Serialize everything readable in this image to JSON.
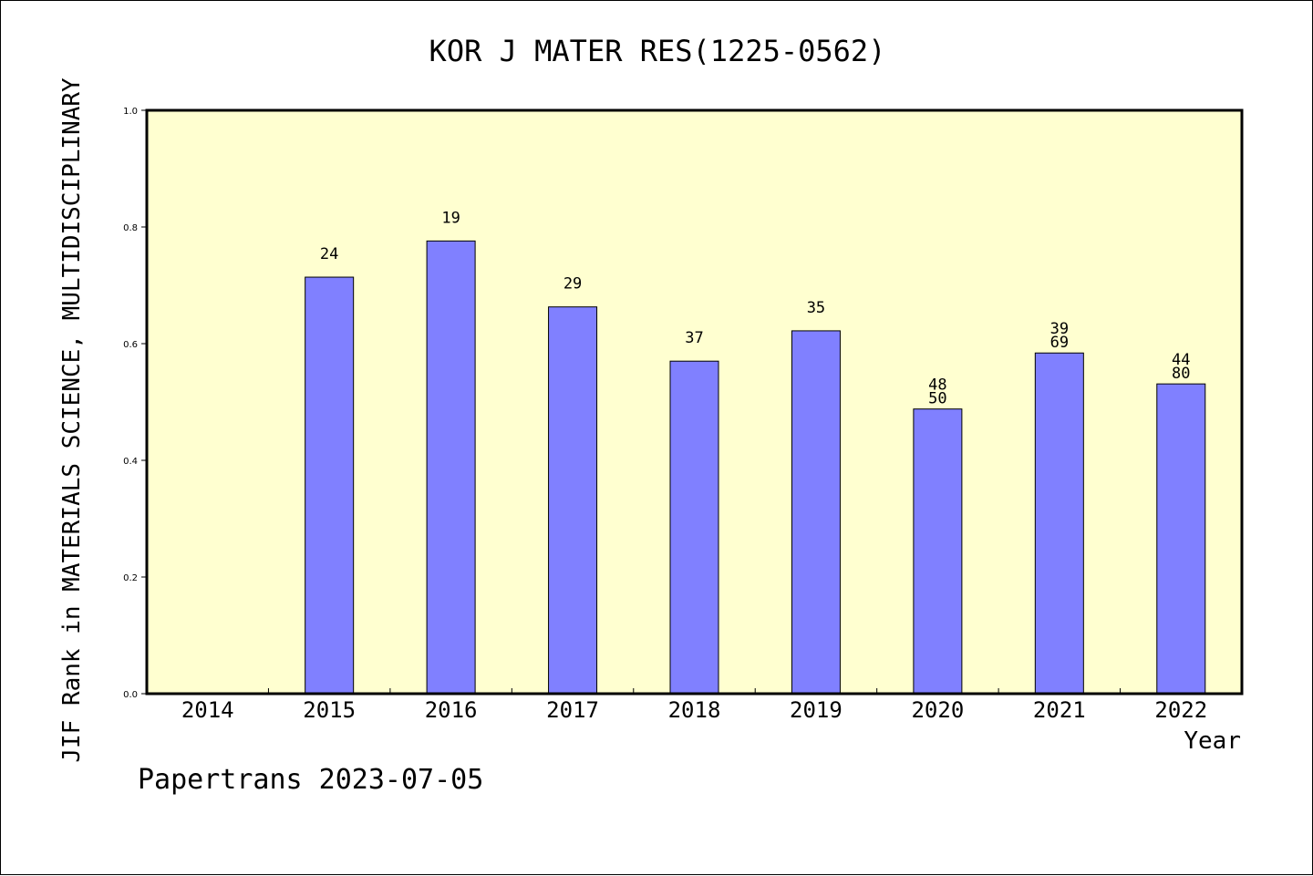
{
  "chart_data": {
    "type": "bar",
    "title": "KOR J MATER RES(1225-0562)",
    "ylabel": "JIF Rank in MATERIALS SCIENCE, MULTIDISCIPLINARY",
    "xlabel": "Year",
    "footer": "Papertrans 2023-07-05",
    "categories": [
      "2014",
      "2015",
      "2016",
      "2017",
      "2018",
      "2019",
      "2020",
      "2021",
      "2022"
    ],
    "values": [
      null,
      0.714,
      0.776,
      0.663,
      0.57,
      0.622,
      0.488,
      0.584,
      0.531
    ],
    "bar_labels": [
      [],
      [
        "24"
      ],
      [
        "19"
      ],
      [
        "29"
      ],
      [
        "37"
      ],
      [
        "35"
      ],
      [
        "48",
        "50"
      ],
      [
        "39",
        "69"
      ],
      [
        "44",
        "80"
      ]
    ],
    "yticks": [
      "0.0",
      "0.2",
      "0.4",
      "0.6",
      "0.8",
      "1.0"
    ],
    "ylim": [
      0,
      1.0
    ],
    "colors": {
      "plot_background": "#ffffd0",
      "bar_fill": "#8080ff",
      "bar_stroke": "#000000"
    }
  }
}
